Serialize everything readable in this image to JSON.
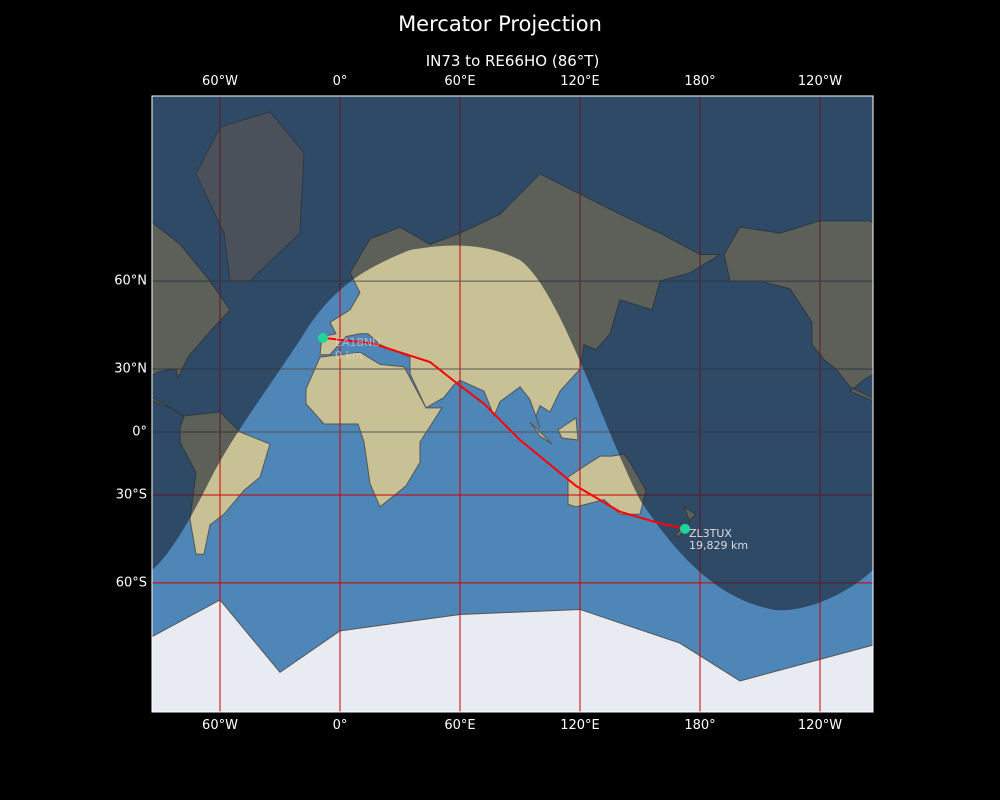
{
  "title": "Mercator Projection",
  "subtitle": "IN73 to RE66HO (86°T)",
  "x_ticks": [
    {
      "lon": -60,
      "label": "60°W"
    },
    {
      "lon": 0,
      "label": "0°"
    },
    {
      "lon": 60,
      "label": "60°E"
    },
    {
      "lon": 120,
      "label": "120°E"
    },
    {
      "lon": 180,
      "label": "180°"
    },
    {
      "lon": 240,
      "label": "120°W"
    }
  ],
  "y_ticks": [
    {
      "lat": 60,
      "label": "60°N"
    },
    {
      "lat": 30,
      "label": "30°N"
    },
    {
      "lat": 0,
      "label": "0°"
    },
    {
      "lat": -30,
      "label": "30°S"
    },
    {
      "lat": -60,
      "label": "60°S"
    }
  ],
  "extent": {
    "lon": [
      -94,
      266
    ],
    "lat": [
      -79,
      84
    ]
  },
  "start": {
    "call": "EA1BNU",
    "distance": "0 km",
    "lon": -8.5,
    "lat": 42.5
  },
  "end": {
    "call": "ZL3TUX",
    "distance": "19,829 km",
    "lon": 172.5,
    "lat": -43.5
  },
  "path": [
    [
      -8.5,
      42.5
    ],
    [
      16,
      40.5
    ],
    [
      45,
      33
    ],
    [
      58,
      24
    ],
    [
      72,
      14
    ],
    [
      90,
      -4
    ],
    [
      118,
      -26
    ],
    [
      140,
      -37
    ],
    [
      160,
      -41.5
    ],
    [
      172.5,
      -43.5
    ]
  ],
  "colors": {
    "path": "#ff0000",
    "marker": "#1fd59a",
    "grid": "#cc0000",
    "ocean": "#4f86b8",
    "land": "#c8c196",
    "night": "#1a2533"
  }
}
